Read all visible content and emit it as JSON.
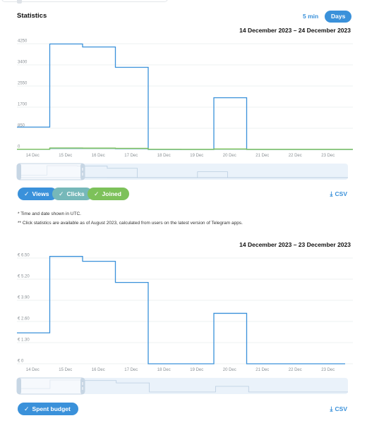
{
  "header": {
    "title": "Statistics",
    "period_options": [
      "5 min",
      "Days"
    ],
    "period_selected": "Days"
  },
  "notes": [
    "* Time and date shown in UTC.",
    "** Click statistics are available as of August 2023, calculated from users on the latest version of Telegram apps."
  ],
  "csv_label": "CSV",
  "colors": {
    "accent": "#3a91da",
    "views": "#3a91da",
    "clicks": "#76b8b9",
    "joined": "#7dc15a",
    "navigator_bg": "#eaf2fa"
  },
  "icons": [
    "check-icon",
    "download-icon"
  ],
  "chart_data": [
    {
      "type": "line",
      "step": true,
      "date_range": "14 December 2023 – 24 December 2023",
      "categories": [
        "14 Dec",
        "15 Dec",
        "16 Dec",
        "17 Dec",
        "18 Dec",
        "19 Dec",
        "20 Dec",
        "21 Dec",
        "22 Dec",
        "23 Dec",
        "24 Dec"
      ],
      "ylim": [
        0,
        4250
      ],
      "y_ticks": [
        "0",
        "850",
        "1700",
        "2550",
        "3400",
        "4250"
      ],
      "grid": true,
      "legend": [
        {
          "name": "Views",
          "selected": true
        },
        {
          "name": "Clicks",
          "selected": true
        },
        {
          "name": "Joined",
          "selected": true
        }
      ],
      "series": [
        {
          "name": "Views",
          "color": "#3a91da",
          "values": [
            900,
            4240,
            4120,
            3300,
            0,
            0,
            2080,
            0,
            0,
            0,
            0
          ]
        },
        {
          "name": "Clicks",
          "color": "#76b8b9",
          "values": [
            5,
            40,
            38,
            30,
            0,
            0,
            8,
            0,
            0,
            0,
            0
          ]
        },
        {
          "name": "Joined",
          "color": "#7dc15a",
          "values": [
            10,
            60,
            55,
            45,
            10,
            5,
            20,
            5,
            5,
            5,
            5
          ]
        }
      ]
    },
    {
      "type": "line",
      "step": true,
      "date_range": "14 December 2023 – 23 December 2023",
      "categories": [
        "14 Dec",
        "15 Dec",
        "16 Dec",
        "17 Dec",
        "18 Dec",
        "19 Dec",
        "20 Dec",
        "21 Dec",
        "22 Dec",
        "23 Dec"
      ],
      "ylim": [
        0,
        6.5
      ],
      "y_ticks": [
        "€ 0",
        "€ 1.30",
        "€ 2.60",
        "€ 3.90",
        "€ 5.20",
        "€ 6.50"
      ],
      "grid": true,
      "legend": [
        {
          "name": "Spent budget",
          "selected": true
        }
      ],
      "series": [
        {
          "name": "Spent budget",
          "color": "#3a91da",
          "values": [
            1.9,
            6.6,
            6.3,
            5.0,
            0,
            0,
            3.1,
            0,
            0,
            0
          ]
        }
      ]
    }
  ]
}
